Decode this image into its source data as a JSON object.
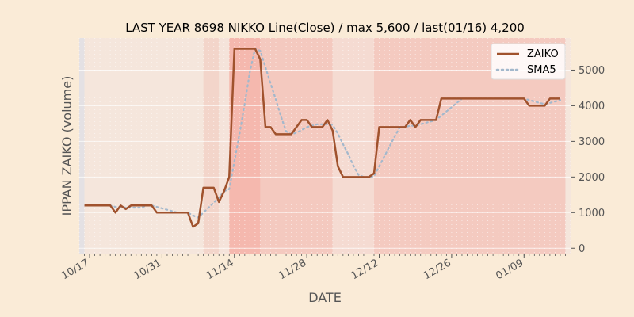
{
  "chart_data": {
    "type": "line",
    "title": "LAST YEAR 8698 NIKKO Line(Close) / max 5,600 / last(01/16) 4,200",
    "xlabel": "DATE",
    "ylabel": "IPPAN ZAIKO (volume)",
    "x_tick_labels": [
      "10/17",
      "10/31",
      "11/14",
      "11/28",
      "12/12",
      "12/26",
      "01/09"
    ],
    "y_ticks": [
      0,
      1000,
      2000,
      3000,
      4000,
      5000
    ],
    "y_tick_labels": [
      "0",
      "1000",
      "2000",
      "3000",
      "4000",
      "5000"
    ],
    "ylim": [
      -150,
      5900
    ],
    "xlim": [
      "2022-10-15",
      "2023-01-18"
    ],
    "grid": true,
    "legend_position": "top-right",
    "x": [
      "2022-10-16",
      "2022-10-17",
      "2022-10-18",
      "2022-10-19",
      "2022-10-20",
      "2022-10-21",
      "2022-10-22",
      "2022-10-23",
      "2022-10-24",
      "2022-10-25",
      "2022-10-26",
      "2022-10-27",
      "2022-10-28",
      "2022-10-29",
      "2022-10-30",
      "2022-10-31",
      "2022-11-01",
      "2022-11-02",
      "2022-11-03",
      "2022-11-04",
      "2022-11-05",
      "2022-11-06",
      "2022-11-07",
      "2022-11-08",
      "2022-11-09",
      "2022-11-10",
      "2022-11-11",
      "2022-11-12",
      "2022-11-13",
      "2022-11-14",
      "2022-11-15",
      "2022-11-16",
      "2022-11-17",
      "2022-11-18",
      "2022-11-19",
      "2022-11-20",
      "2022-11-21",
      "2022-11-22",
      "2022-11-23",
      "2022-11-24",
      "2022-11-25",
      "2022-11-26",
      "2022-11-27",
      "2022-11-28",
      "2022-11-29",
      "2022-11-30",
      "2022-12-01",
      "2022-12-02",
      "2022-12-03",
      "2022-12-04",
      "2022-12-05",
      "2022-12-06",
      "2022-12-07",
      "2022-12-08",
      "2022-12-09",
      "2022-12-10",
      "2022-12-11",
      "2022-12-12",
      "2022-12-13",
      "2022-12-14",
      "2022-12-15",
      "2022-12-16",
      "2022-12-17",
      "2022-12-18",
      "2022-12-19",
      "2022-12-20",
      "2022-12-21",
      "2022-12-22",
      "2022-12-23",
      "2022-12-24",
      "2022-12-25",
      "2022-12-26",
      "2022-12-27",
      "2022-12-28",
      "2022-12-29",
      "2022-12-30",
      "2022-12-31",
      "2023-01-01",
      "2023-01-02",
      "2023-01-03",
      "2023-01-04",
      "2023-01-05",
      "2023-01-06",
      "2023-01-07",
      "2023-01-08",
      "2023-01-09",
      "2023-01-10",
      "2023-01-11",
      "2023-01-12",
      "2023-01-13",
      "2023-01-14",
      "2023-01-15",
      "2023-01-16"
    ],
    "series": [
      {
        "name": "ZAIKO",
        "color": "#a0522d",
        "style": "solid",
        "values": [
          1200,
          1200,
          1200,
          1200,
          1200,
          1200,
          1000,
          1200,
          1100,
          1200,
          1200,
          1200,
          1200,
          1200,
          1000,
          1000,
          1000,
          1000,
          1000,
          1000,
          1000,
          600,
          700,
          1700,
          1700,
          1700,
          1300,
          1600,
          2000,
          5600,
          5600,
          5600,
          5600,
          5600,
          5300,
          3400,
          3400,
          3200,
          3200,
          3200,
          3200,
          3400,
          3600,
          3600,
          3400,
          3400,
          3400,
          3600,
          3300,
          2300,
          2000,
          2000,
          2000,
          2000,
          2000,
          2000,
          2100,
          3400,
          3400,
          3400,
          3400,
          3400,
          3400,
          3600,
          3400,
          3600,
          3600,
          3600,
          3600,
          4200,
          4200,
          4200,
          4200,
          4200,
          4200,
          4200,
          4200,
          4200,
          4200,
          4200,
          4200,
          4200,
          4200,
          4200,
          4200,
          4200,
          4000,
          4000,
          4000,
          4000,
          4200,
          4200,
          4200
        ]
      },
      {
        "name": "SMA5",
        "color": "#a3b8cc",
        "style": "dotted",
        "values": [
          null,
          null,
          null,
          null,
          1200,
          1200,
          1160,
          1160,
          1140,
          1140,
          1140,
          1140,
          1200,
          1200,
          1160,
          1120,
          1080,
          1040,
          1000,
          1000,
          1000,
          920,
          860,
          1000,
          1140,
          1280,
          1420,
          1600,
          1660,
          2440,
          3220,
          4060,
          4960,
          5600,
          5540,
          5080,
          4620,
          4180,
          3700,
          3280,
          3200,
          3240,
          3320,
          3400,
          3440,
          3480,
          3480,
          3480,
          3460,
          3220,
          2920,
          2640,
          2320,
          2060,
          2000,
          2000,
          2020,
          2300,
          2580,
          2860,
          3140,
          3400,
          3400,
          3440,
          3440,
          3480,
          3520,
          3560,
          3600,
          3720,
          3840,
          3960,
          4080,
          4200,
          4200,
          4200,
          4200,
          4200,
          4200,
          4200,
          4200,
          4200,
          4200,
          4200,
          4200,
          4200,
          4160,
          4120,
          4080,
          4040,
          4080,
          4120,
          4160
        ]
      }
    ],
    "shaded_spans": [
      {
        "start": "2022-10-15",
        "end": "2022-10-16",
        "color": "#e4e1e4",
        "opacity": 1
      },
      {
        "start": "2022-10-16",
        "end": "2022-11-08",
        "color": "#f5e6dc",
        "opacity": 1
      },
      {
        "start": "2022-11-08",
        "end": "2022-11-11",
        "color": "#f3d5ca",
        "opacity": 1
      },
      {
        "start": "2022-11-11",
        "end": "2022-11-13",
        "color": "#f5e3da",
        "opacity": 1
      },
      {
        "start": "2022-11-13",
        "end": "2022-11-19",
        "color": "#f5b8ae",
        "opacity": 1
      },
      {
        "start": "2022-11-19",
        "end": "2022-12-03",
        "color": "#f4c9bf",
        "opacity": 1
      },
      {
        "start": "2022-12-03",
        "end": "2022-12-11",
        "color": "#f5dbd2",
        "opacity": 1
      },
      {
        "start": "2022-12-11",
        "end": "2023-01-17",
        "color": "#f4cac0",
        "opacity": 1
      },
      {
        "start": "2023-01-17",
        "end": "2023-01-18",
        "color": "#f5e6dc",
        "opacity": 1
      }
    ]
  }
}
